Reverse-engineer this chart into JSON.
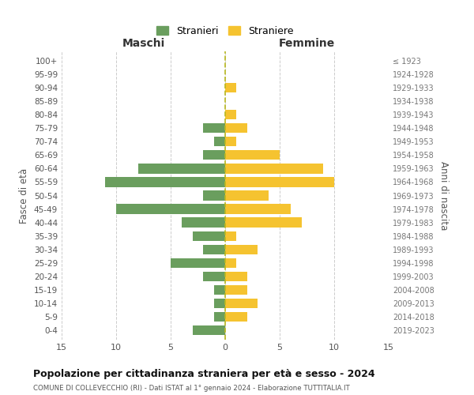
{
  "age_groups": [
    "0-4",
    "5-9",
    "10-14",
    "15-19",
    "20-24",
    "25-29",
    "30-34",
    "35-39",
    "40-44",
    "45-49",
    "50-54",
    "55-59",
    "60-64",
    "65-69",
    "70-74",
    "75-79",
    "80-84",
    "85-89",
    "90-94",
    "95-99",
    "100+"
  ],
  "birth_years": [
    "2019-2023",
    "2014-2018",
    "2009-2013",
    "2004-2008",
    "1999-2003",
    "1994-1998",
    "1989-1993",
    "1984-1988",
    "1979-1983",
    "1974-1978",
    "1969-1973",
    "1964-1968",
    "1959-1963",
    "1954-1958",
    "1949-1953",
    "1944-1948",
    "1939-1943",
    "1934-1938",
    "1929-1933",
    "1924-1928",
    "≤ 1923"
  ],
  "maschi": [
    3,
    1,
    1,
    1,
    2,
    5,
    2,
    3,
    4,
    10,
    2,
    11,
    8,
    2,
    1,
    2,
    0,
    0,
    0,
    0,
    0
  ],
  "femmine": [
    0,
    2,
    3,
    2,
    2,
    1,
    3,
    1,
    7,
    6,
    4,
    10,
    9,
    5,
    1,
    2,
    1,
    0,
    1,
    0,
    0
  ],
  "color_maschi": "#6a9e5e",
  "color_femmine": "#f5c330",
  "xlabel_left": "Maschi",
  "xlabel_right": "Femmine",
  "ylabel_left": "Fasce di età",
  "ylabel_right": "Anni di nascita",
  "legend_maschi": "Stranieri",
  "legend_femmine": "Straniere",
  "title": "Popolazione per cittadinanza straniera per età e sesso - 2024",
  "subtitle": "COMUNE DI COLLEVECCHIO (RI) - Dati ISTAT al 1° gennaio 2024 - Elaborazione TUTTITALIA.IT",
  "xlim": 15,
  "background_color": "#ffffff",
  "grid_color": "#cccccc",
  "centerline_color": "#b8b820"
}
